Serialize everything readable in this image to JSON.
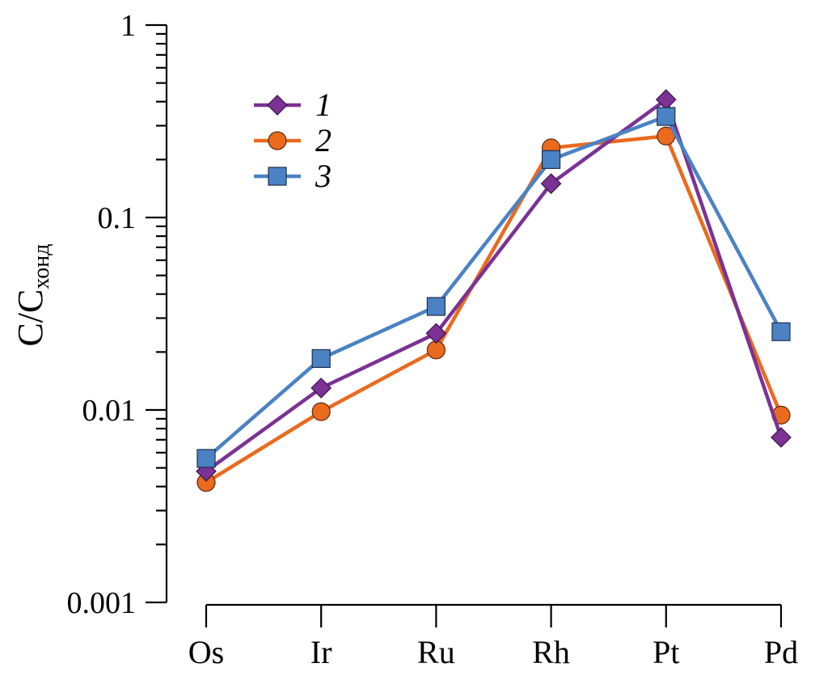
{
  "chart_data": {
    "type": "line",
    "yscale": "log",
    "ylim": [
      0.001,
      1
    ],
    "ylabel": "C/C",
    "ylabel_subscript": "хонд",
    "y_ticks": [
      {
        "value": 1,
        "label": "1"
      },
      {
        "value": 0.1,
        "label": "0.1"
      },
      {
        "value": 0.01,
        "label": "0.01"
      },
      {
        "value": 0.001,
        "label": "0.001"
      }
    ],
    "categories": [
      "Os",
      "Ir",
      "Ru",
      "Rh",
      "Pt",
      "Pd"
    ],
    "legend_position": "top-left",
    "series": [
      {
        "name": "1",
        "marker": "diamond",
        "color": "#7b3294",
        "values": [
          0.0048,
          0.013,
          0.025,
          0.15,
          0.41,
          0.0072
        ]
      },
      {
        "name": "2",
        "marker": "circle",
        "color": "#ea6a1e",
        "values": [
          0.0042,
          0.0098,
          0.0205,
          0.23,
          0.265,
          0.0094
        ]
      },
      {
        "name": "3",
        "marker": "square",
        "color": "#4a82c4",
        "values": [
          0.0056,
          0.0185,
          0.0345,
          0.2,
          0.335,
          0.0255
        ]
      }
    ]
  }
}
